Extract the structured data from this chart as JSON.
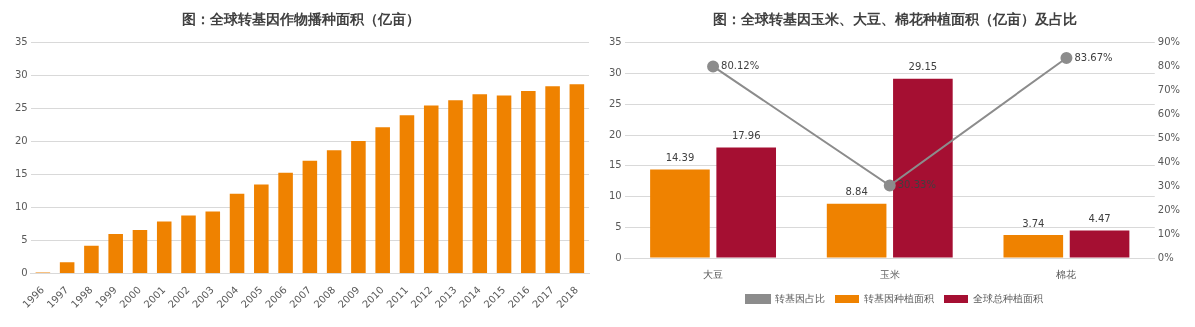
{
  "chart_data": [
    {
      "type": "bar",
      "title": "图：全球转基因作物播种面积（亿亩）",
      "categories": [
        "1996",
        "1997",
        "1998",
        "1999",
        "2000",
        "2001",
        "2002",
        "2003",
        "2004",
        "2005",
        "2006",
        "2007",
        "2008",
        "2009",
        "2010",
        "2011",
        "2012",
        "2013",
        "2014",
        "2015",
        "2016",
        "2017",
        "2018"
      ],
      "values": [
        0.17,
        1.7,
        4.2,
        6.0,
        6.6,
        7.9,
        8.8,
        9.4,
        12.1,
        13.5,
        15.3,
        17.1,
        18.7,
        20.1,
        22.2,
        24.0,
        25.5,
        26.3,
        27.2,
        27.0,
        27.7,
        28.4,
        28.7
      ],
      "color": "#ef8200",
      "ylim": [
        0,
        35
      ],
      "yticks": [
        0,
        5,
        10,
        15,
        20,
        25,
        30,
        35
      ],
      "grid": "y",
      "legend": false
    },
    {
      "type": "bar",
      "title": "图：全球转基因玉米、大豆、棉花种植面积（亿亩）及占比",
      "categories": [
        "大豆",
        "玉米",
        "棉花"
      ],
      "series": [
        {
          "name": "转基因种植面积",
          "color": "#ef8200",
          "values": [
            14.39,
            8.84,
            3.74
          ],
          "value_labels": [
            "14.39",
            "8.84",
            "3.74"
          ]
        },
        {
          "name": "全球总种植面积",
          "color": "#a50f32",
          "values": [
            17.96,
            29.15,
            4.47
          ],
          "value_labels": [
            "17.96",
            "29.15",
            "4.47"
          ]
        },
        {
          "name": "转基因占比",
          "type": "line",
          "axis": "y2",
          "color": "#8c8c8c",
          "values": [
            80.12,
            30.33,
            83.67
          ],
          "value_labels": [
            "80.12%",
            "30.33%",
            "83.67%"
          ]
        }
      ],
      "ylim": [
        0,
        35
      ],
      "yticks": [
        0,
        5,
        10,
        15,
        20,
        25,
        30,
        35
      ],
      "y2lim": [
        0,
        90
      ],
      "y2ticks": [
        {
          "value": 0,
          "label": "0%"
        },
        {
          "value": 10,
          "label": "10%"
        },
        {
          "value": 20,
          "label": "20%"
        },
        {
          "value": 30,
          "label": "30%"
        },
        {
          "value": 40,
          "label": "40%"
        },
        {
          "value": 50,
          "label": "50%"
        },
        {
          "value": 60,
          "label": "60%"
        },
        {
          "value": 70,
          "label": "70%"
        },
        {
          "value": 80,
          "label": "80%"
        },
        {
          "value": 90,
          "label": "90%"
        }
      ],
      "grid": "y",
      "legend": "bottom",
      "marker": "circle"
    }
  ]
}
